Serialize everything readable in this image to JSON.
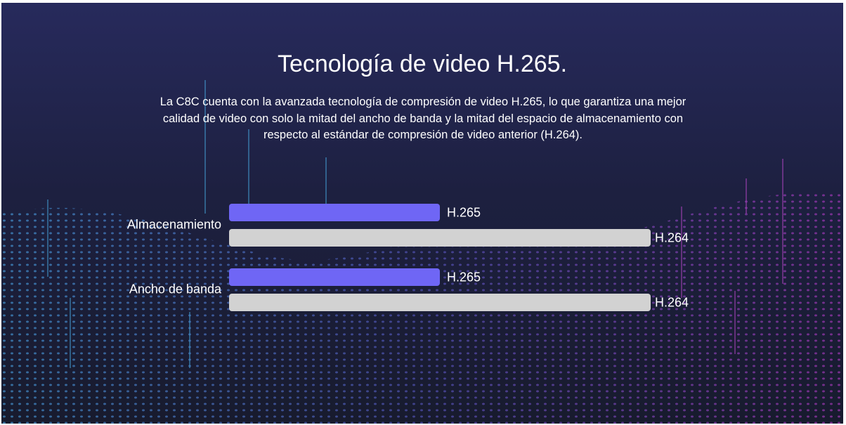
{
  "chart_data": {
    "type": "bar",
    "orientation": "horizontal",
    "title": "Tecnología de video H.265.",
    "subtitle": "La C8C cuenta con la avanzada tecnología de compresión de video H.265, lo que garantiza una mejor calidad de video con solo la mitad del ancho de banda y la mitad del espacio de almacenamiento con respecto al estándar de compresión de video anterior (H.264).",
    "categories": [
      "Almacenamiento",
      "Ancho de banda"
    ],
    "series": [
      {
        "name": "H.265",
        "color": "#6f66f5",
        "values": [
          50,
          50
        ]
      },
      {
        "name": "H.264",
        "color": "#d2d2d2",
        "values": [
          100,
          100
        ]
      }
    ],
    "xlim": [
      0,
      100
    ]
  }
}
